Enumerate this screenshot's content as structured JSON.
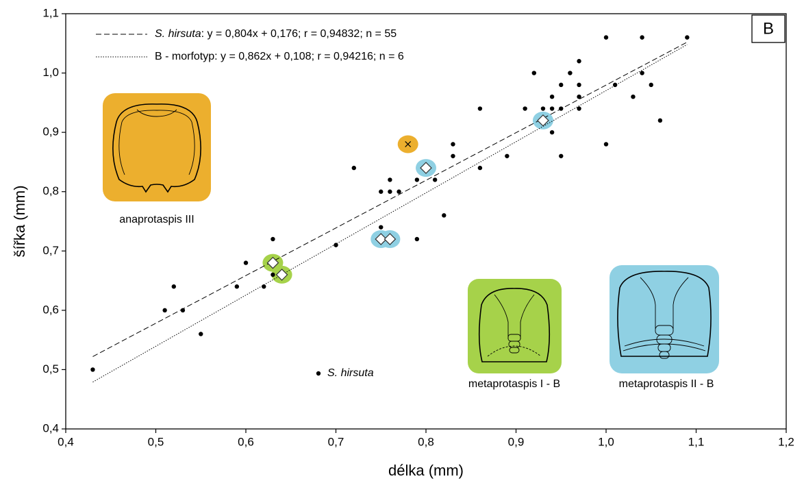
{
  "chart_data": {
    "type": "scatter",
    "panel_label": "B",
    "xlabel": "délka (mm)",
    "ylabel": "šířka (mm)",
    "xlim": [
      0.4,
      1.2
    ],
    "ylim": [
      0.4,
      1.1
    ],
    "xticks": [
      {
        "value": 0.4,
        "label": "0,4"
      },
      {
        "value": 0.5,
        "label": "0,5"
      },
      {
        "value": 0.6,
        "label": "0,6"
      },
      {
        "value": 0.7,
        "label": "0,7"
      },
      {
        "value": 0.8,
        "label": "0,8"
      },
      {
        "value": 0.9,
        "label": "0,9"
      },
      {
        "value": 1.0,
        "label": "1,0"
      },
      {
        "value": 1.1,
        "label": "1,1"
      },
      {
        "value": 1.2,
        "label": "1,2"
      }
    ],
    "yticks": [
      {
        "value": 0.4,
        "label": "0,4"
      },
      {
        "value": 0.5,
        "label": "0,5"
      },
      {
        "value": 0.6,
        "label": "0,6"
      },
      {
        "value": 0.7,
        "label": "0,7"
      },
      {
        "value": 0.8,
        "label": "0,8"
      },
      {
        "value": 0.9,
        "label": "0,9"
      },
      {
        "value": 1.0,
        "label": "1,0"
      },
      {
        "value": 1.1,
        "label": "1,1"
      }
    ],
    "series": [
      {
        "name": "S. hirsuta",
        "marker": "dot",
        "color": "#000000",
        "x": [
          0.43,
          0.51,
          0.52,
          0.53,
          0.55,
          0.59,
          0.6,
          0.62,
          0.63,
          0.63,
          0.7,
          0.72,
          0.75,
          0.75,
          0.76,
          0.76,
          0.77,
          0.79,
          0.79,
          0.81,
          0.82,
          0.83,
          0.83,
          0.86,
          0.86,
          0.89,
          0.91,
          0.92,
          0.93,
          0.94,
          0.94,
          0.94,
          0.95,
          0.95,
          0.95,
          0.96,
          0.97,
          0.97,
          0.97,
          0.97,
          1.0,
          1.0,
          1.01,
          1.03,
          1.04,
          1.04,
          1.05,
          1.06,
          1.09
        ],
        "values": [
          0.5,
          0.6,
          0.64,
          0.6,
          0.56,
          0.64,
          0.68,
          0.64,
          0.72,
          0.66,
          0.71,
          0.84,
          0.8,
          0.74,
          0.82,
          0.8,
          0.8,
          0.72,
          0.82,
          0.82,
          0.76,
          0.86,
          0.88,
          0.94,
          0.84,
          0.86,
          0.94,
          1.0,
          0.94,
          0.94,
          0.96,
          0.9,
          0.98,
          0.94,
          0.86,
          1.0,
          1.02,
          0.98,
          0.96,
          0.94,
          1.06,
          0.88,
          0.98,
          0.96,
          1.06,
          1.0,
          0.98,
          0.92,
          1.06
        ]
      },
      {
        "marker": "diamond",
        "color": "#ffffff",
        "x": [
          0.63,
          0.64,
          0.75,
          0.76,
          0.8,
          0.93
        ],
        "values": [
          0.68,
          0.66,
          0.72,
          0.72,
          0.84,
          0.92
        ],
        "halo_colors": [
          "#a6d24a",
          "#a6d24a",
          "#8fd0e3",
          "#8fd0e3",
          "#8fd0e3",
          "#8fd0e3"
        ]
      },
      {
        "marker": "cross",
        "color": "#000000",
        "x": [
          0.78
        ],
        "values": [
          0.88
        ],
        "halo_colors": [
          "#ecaf2e"
        ]
      }
    ],
    "lines": [
      {
        "name": "S. hirsuta",
        "legend_text": ": y = 0,804x + 0,176; r = 0,94832; n = 55",
        "style": "dashed",
        "x": [
          0.43,
          1.09
        ],
        "values": [
          0.522,
          1.052
        ]
      },
      {
        "name": "B - morfotyp",
        "legend_text": ": y = 0,862x + 0,108; r = 0,94216; n = 6",
        "style": "dotted",
        "x": [
          0.43,
          1.09
        ],
        "values": [
          0.479,
          1.048
        ]
      }
    ],
    "illustrations": [
      {
        "label": "anaprotaspis III",
        "color": "#ecaf2e"
      },
      {
        "label": "metaprotaspis I - B",
        "color": "#a6d24a"
      },
      {
        "label": "metaprotaspis II - B",
        "color": "#8fd0e3"
      }
    ]
  }
}
